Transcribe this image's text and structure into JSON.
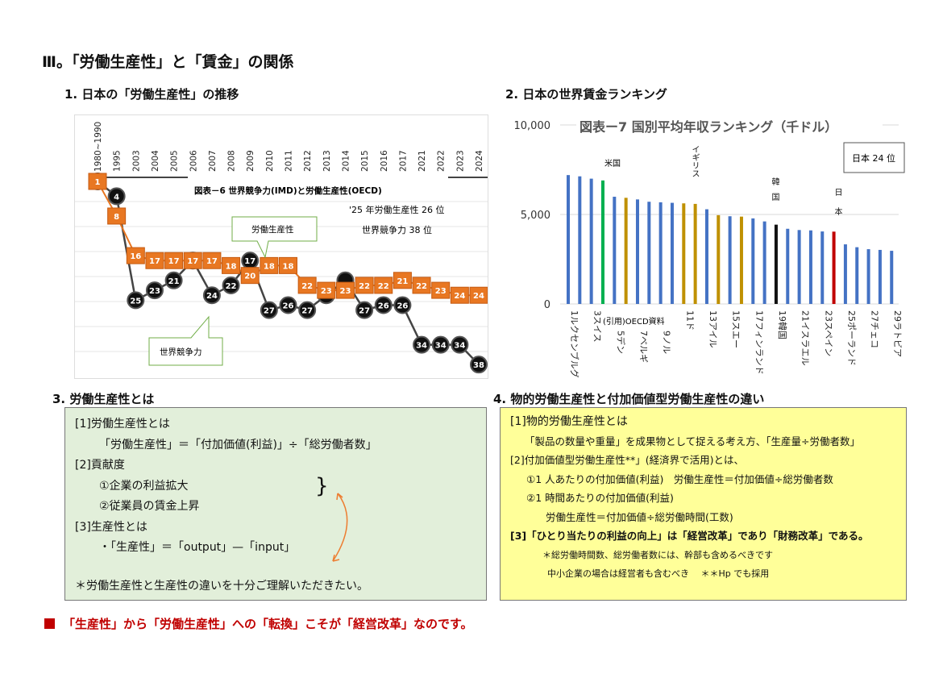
{
  "title": "Ⅲ。「労働生産性」と「賃金」の関係",
  "section1": {
    "heading": "1. 日本の「労働生産性」の推移"
  },
  "section2": {
    "heading": "2. 日本の世界賃金ランキング"
  },
  "section3": {
    "heading": "3. 労働生産性とは",
    "lines": [
      "[1]労働生産性とは",
      "「労働生産性」＝「付加価値(利益)」÷「総労働者数」",
      "[2]貢献度",
      "①企業の利益拡大",
      "②従業員の賃金上昇",
      "[3]生産性とは",
      "・「生産性」＝「output」—「input」",
      "＊労働生産性と生産性の違いを十分ご理解いただきたい。"
    ],
    "bracket": "}"
  },
  "section4": {
    "heading": "4. 物的労働生産性と付加価値型労働生産性の違い",
    "lines": [
      "[1]物的労働生産性とは",
      "「製品の数量や重量」を成果物として捉える考え方、「生産量÷労働者数」",
      "[2]付加価値型労働生産性**」(経済界で活用)とは、",
      "①1 人あたりの付加価値(利益)　労働生産性＝付加価値÷総労働者数",
      "②1 時間あたりの付加価値(利益)",
      "労働生産性＝付加価値÷総労働時間(工数)",
      "[3]「ひとり当たりの利益の向上」は「経営改革」であり「財務改革」である。",
      "＊総労働時間数、総労働者数には、幹部も含めるべきです",
      "中小企業の場合は経営者も含むべき　 ＊＊Hp でも採用"
    ]
  },
  "footer": "「生産性」から「労働生産性」への「転換」こそが「経営改革」なのです。",
  "colors": {
    "orange": "#e87722",
    "black": "#111111",
    "blue": "#4472c4",
    "green": "#00b050",
    "gold": "#bf9000",
    "red": "#c00000",
    "footer": "#c00000"
  },
  "chart_data": [
    {
      "type": "line",
      "title": "図表－6 世界競争力(IMD)と労働生産性(OECD)",
      "categories": [
        "1980~1990",
        "1995",
        "2003",
        "2004",
        "2005",
        "2006",
        "2007",
        "2008",
        "2009",
        "2010",
        "2011",
        "2012",
        "2013",
        "2014",
        "2015",
        "2016",
        "2017",
        "2021",
        "2022",
        "2023",
        "2024"
      ],
      "yaxis": "rank (inverted)",
      "ylim": [
        1,
        38
      ],
      "grid": true,
      "series": [
        {
          "name": "労働生産性",
          "marker": "square",
          "color": "#e87722",
          "values": [
            1,
            8,
            16,
            17,
            17,
            17,
            17,
            18,
            20,
            18,
            18,
            22,
            23,
            23,
            22,
            22,
            21,
            22,
            23,
            24,
            24
          ]
        },
        {
          "name": "世界競争力",
          "marker": "circle",
          "color": "#111111",
          "values": [
            1,
            4,
            25,
            23,
            21,
            17,
            24,
            22,
            17,
            27,
            26,
            27,
            24,
            21,
            27,
            26,
            26,
            34,
            34,
            34,
            38
          ]
        }
      ],
      "annotations": [
        "'25 年労働生産性 26 位",
        "世界競争力  38 位"
      ]
    },
    {
      "type": "bar",
      "title": "図表ー7  国別平均年収ランキング（千ドル）",
      "yticks": [
        "10,000",
        "5,000",
        "0"
      ],
      "ylim": [
        0,
        10000
      ],
      "grid": true,
      "values": [
        7200,
        7130,
        7000,
        6900,
        5990,
        5930,
        5840,
        5710,
        5680,
        5650,
        5620,
        5590,
        5290,
        4960,
        4900,
        4880,
        4780,
        4610,
        4430,
        4200,
        4130,
        4110,
        4050,
        4040,
        3330,
        3170,
        3060,
        3020,
        2970
      ],
      "bar_colors": [
        "blue",
        "blue",
        "blue",
        "green",
        "blue",
        "gold",
        "blue",
        "blue",
        "blue",
        "blue",
        "gold",
        "gold",
        "blue",
        "gold",
        "blue",
        "gold",
        "blue",
        "blue",
        "black",
        "blue",
        "blue",
        "blue",
        "blue",
        "red",
        "blue",
        "blue",
        "blue",
        "blue",
        "blue"
      ],
      "tick_labels": [
        "1ルクセンブルグ",
        "3スイス",
        "5デン",
        "7ベルギ",
        "9ノル",
        "11ド",
        "13アイル",
        "15スエー",
        "17フィンランド",
        "19韓国",
        "21イスラエル",
        "23スペイン",
        "25ポーランド",
        "27チェコ",
        "29ラトビア"
      ],
      "annotations": {
        "usa": "米国",
        "uk": "イギリス",
        "korea": "韓国",
        "japan": "日本",
        "box": "日本 24 位",
        "source": "(引用)OECD資料"
      }
    }
  ]
}
